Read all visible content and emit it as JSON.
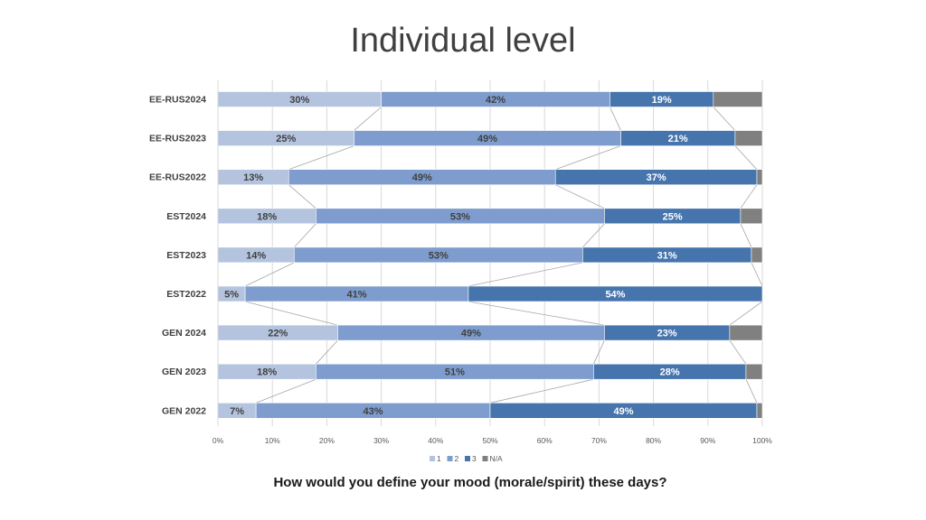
{
  "slide": {
    "title": "Individual level",
    "caption": "How would you define your mood (morale/spirit) these days?"
  },
  "chart_data": {
    "type": "bar",
    "orientation": "horizontal",
    "stacked": "percent",
    "categories": [
      "EE-RUS2024",
      "EE-RUS2023",
      "EE-RUS2022",
      "EST2024",
      "EST2023",
      "EST2022",
      "GEN 2024",
      "GEN 2023",
      "GEN 2022"
    ],
    "series": [
      {
        "name": "1",
        "color": "#b4c4df",
        "labelColor": "#404040",
        "values": [
          30,
          25,
          13,
          18,
          14,
          5,
          22,
          18,
          7
        ]
      },
      {
        "name": "2",
        "color": "#7e9ccd",
        "labelColor": "#404040",
        "values": [
          42,
          49,
          49,
          53,
          53,
          41,
          49,
          51,
          43
        ]
      },
      {
        "name": "3",
        "color": "#4674ad",
        "labelColor": "#ffffff",
        "values": [
          19,
          21,
          37,
          25,
          31,
          54,
          23,
          28,
          49
        ]
      },
      {
        "name": "N/A",
        "color": "#808080",
        "labelColor": "#ffffff",
        "values": [
          9,
          5,
          1,
          4,
          2,
          0,
          6,
          3,
          1
        ]
      }
    ],
    "data_labels": [
      [
        "30%",
        "42%",
        "19%",
        ""
      ],
      [
        "25%",
        "49%",
        "21%",
        ""
      ],
      [
        "13%",
        "49%",
        "37%",
        ""
      ],
      [
        "18%",
        "53%",
        "25%",
        ""
      ],
      [
        "14%",
        "53%",
        "31%",
        ""
      ],
      [
        "5%",
        "41%",
        "54%",
        ""
      ],
      [
        "22%",
        "49%",
        "23%",
        ""
      ],
      [
        "18%",
        "51%",
        "28%",
        ""
      ],
      [
        "7%",
        "43%",
        "49%",
        ""
      ]
    ],
    "xlim": [
      0,
      100
    ],
    "xticks": [
      "0%",
      "10%",
      "20%",
      "30%",
      "40%",
      "50%",
      "60%",
      "70%",
      "80%",
      "90%",
      "100%"
    ],
    "grid": true,
    "series_lines": true,
    "legend": "bottom"
  }
}
